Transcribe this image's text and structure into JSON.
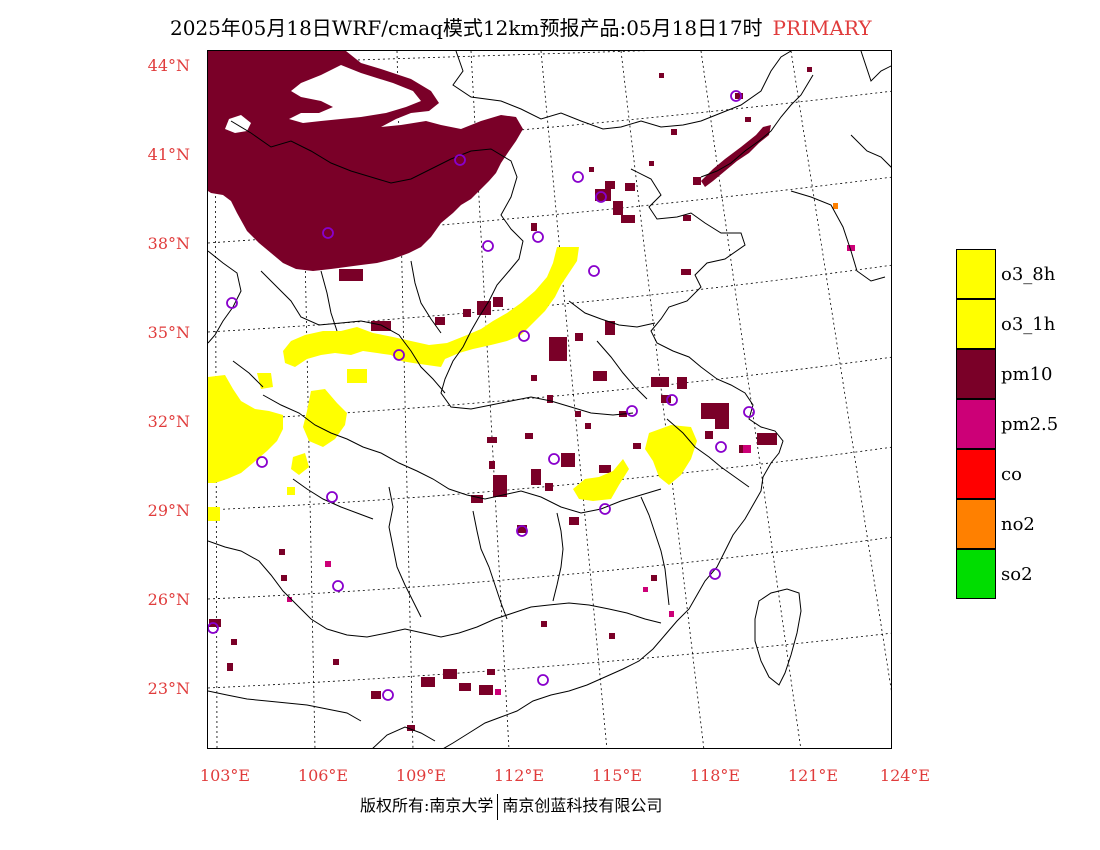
{
  "title": {
    "main": "2025年05月18日WRF/cmaq模式12km预报产品:05月18日17时",
    "tag": "PRIMARY"
  },
  "axes": {
    "lat_labels": [
      "44°N",
      "41°N",
      "38°N",
      "35°N",
      "32°N",
      "29°N",
      "26°N",
      "23°N"
    ],
    "lon_labels": [
      "103°E",
      "106°E",
      "109°E",
      "112°E",
      "115°E",
      "118°E",
      "121°E",
      "124°E"
    ]
  },
  "legend": [
    {
      "label": "o3_8h",
      "color": "#ffff00"
    },
    {
      "label": "o3_1h",
      "color": "#ffff00"
    },
    {
      "label": "pm10",
      "color": "#7a0028"
    },
    {
      "label": "pm2.5",
      "color": "#cc0077"
    },
    {
      "label": "co",
      "color": "#ff0000"
    },
    {
      "label": "no2",
      "color": "#ff8000"
    },
    {
      "label": "so2",
      "color": "#00dd00"
    }
  ],
  "footer": {
    "left": "版权所有:南京大学",
    "right": "南京创蓝科技有限公司"
  },
  "map": {
    "type": "primary-pollutant-grid",
    "colors": {
      "pm10": "#7a0028",
      "o3": "#ffff00",
      "pm25": "#cc0077",
      "no2": "#ff8000",
      "stations": "#8800cc"
    }
  }
}
